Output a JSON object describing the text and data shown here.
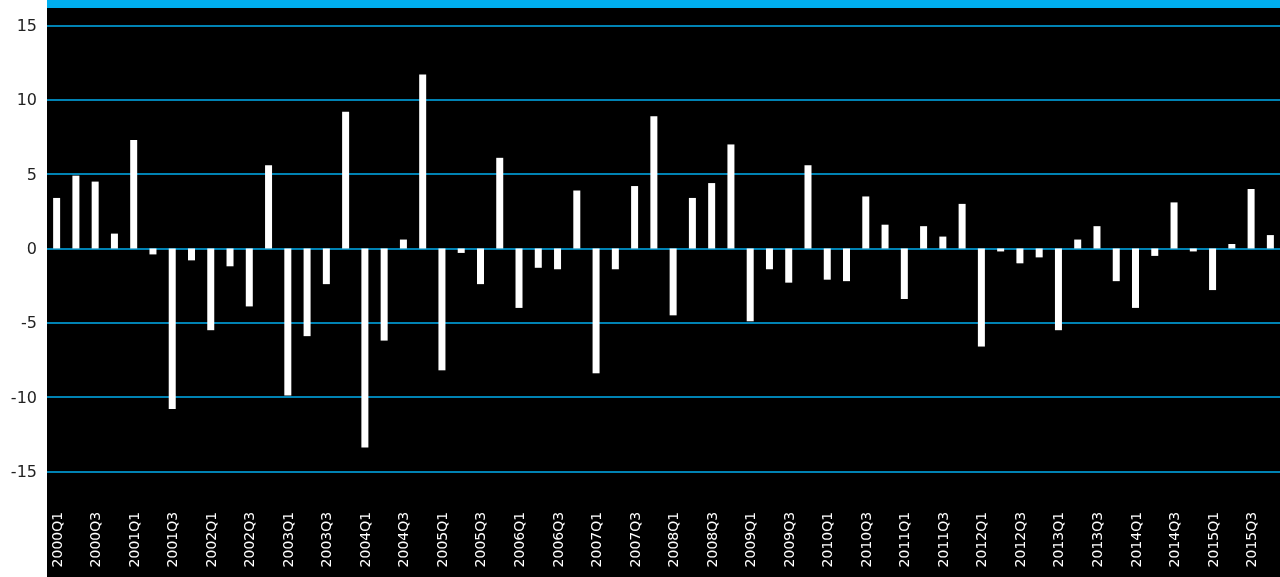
{
  "chart_data": {
    "type": "bar",
    "categories": [
      "2000Q1",
      null,
      "2000Q3",
      null,
      "2001Q1",
      null,
      "2001Q3",
      null,
      "2002Q1",
      null,
      "2002Q3",
      null,
      "2003Q1",
      null,
      "2003Q3",
      null,
      "2004Q1",
      null,
      "2004Q3",
      null,
      "2005Q1",
      null,
      "2005Q3",
      null,
      "2006Q1",
      null,
      "2006Q3",
      null,
      "2007Q1",
      null,
      "2007Q3",
      null,
      "2008Q1",
      null,
      "2008Q3",
      null,
      "2009Q1",
      null,
      "2009Q3",
      null,
      "2010Q1",
      null,
      "2010Q3",
      null,
      "2011Q1",
      null,
      "2011Q3",
      null,
      "2012Q1",
      null,
      "2012Q3",
      null,
      "2013Q1",
      null,
      "2013Q3",
      null,
      "2014Q1",
      null,
      "2014Q3",
      null,
      "2015Q1",
      null,
      "2015Q3",
      null
    ],
    "values": [
      3.4,
      4.9,
      4.5,
      1.0,
      7.3,
      -0.4,
      -10.8,
      -0.8,
      -5.5,
      -1.2,
      -3.9,
      5.6,
      -9.9,
      -5.9,
      -2.4,
      9.2,
      -13.4,
      -6.2,
      0.6,
      11.7,
      -8.2,
      -0.3,
      -2.4,
      6.1,
      -4.0,
      -1.3,
      -1.4,
      3.9,
      -8.4,
      -1.4,
      4.2,
      8.9,
      -4.5,
      3.4,
      4.4,
      7.0,
      -4.9,
      -1.4,
      -2.3,
      5.6,
      -2.1,
      -2.2,
      3.5,
      1.6,
      -3.4,
      1.5,
      0.8,
      3.0,
      -6.6,
      -0.2,
      -1.0,
      -0.6,
      -5.5,
      0.6,
      1.5,
      -2.2,
      -4.0,
      -0.5,
      3.1,
      -0.2,
      -2.8,
      0.3,
      4.0,
      0.9
    ],
    "color": "#ffffff",
    "ylim": [
      -22,
      16
    ],
    "yticks": [
      -15,
      -10,
      -5,
      0,
      5,
      10,
      15
    ],
    "grid": "y"
  }
}
